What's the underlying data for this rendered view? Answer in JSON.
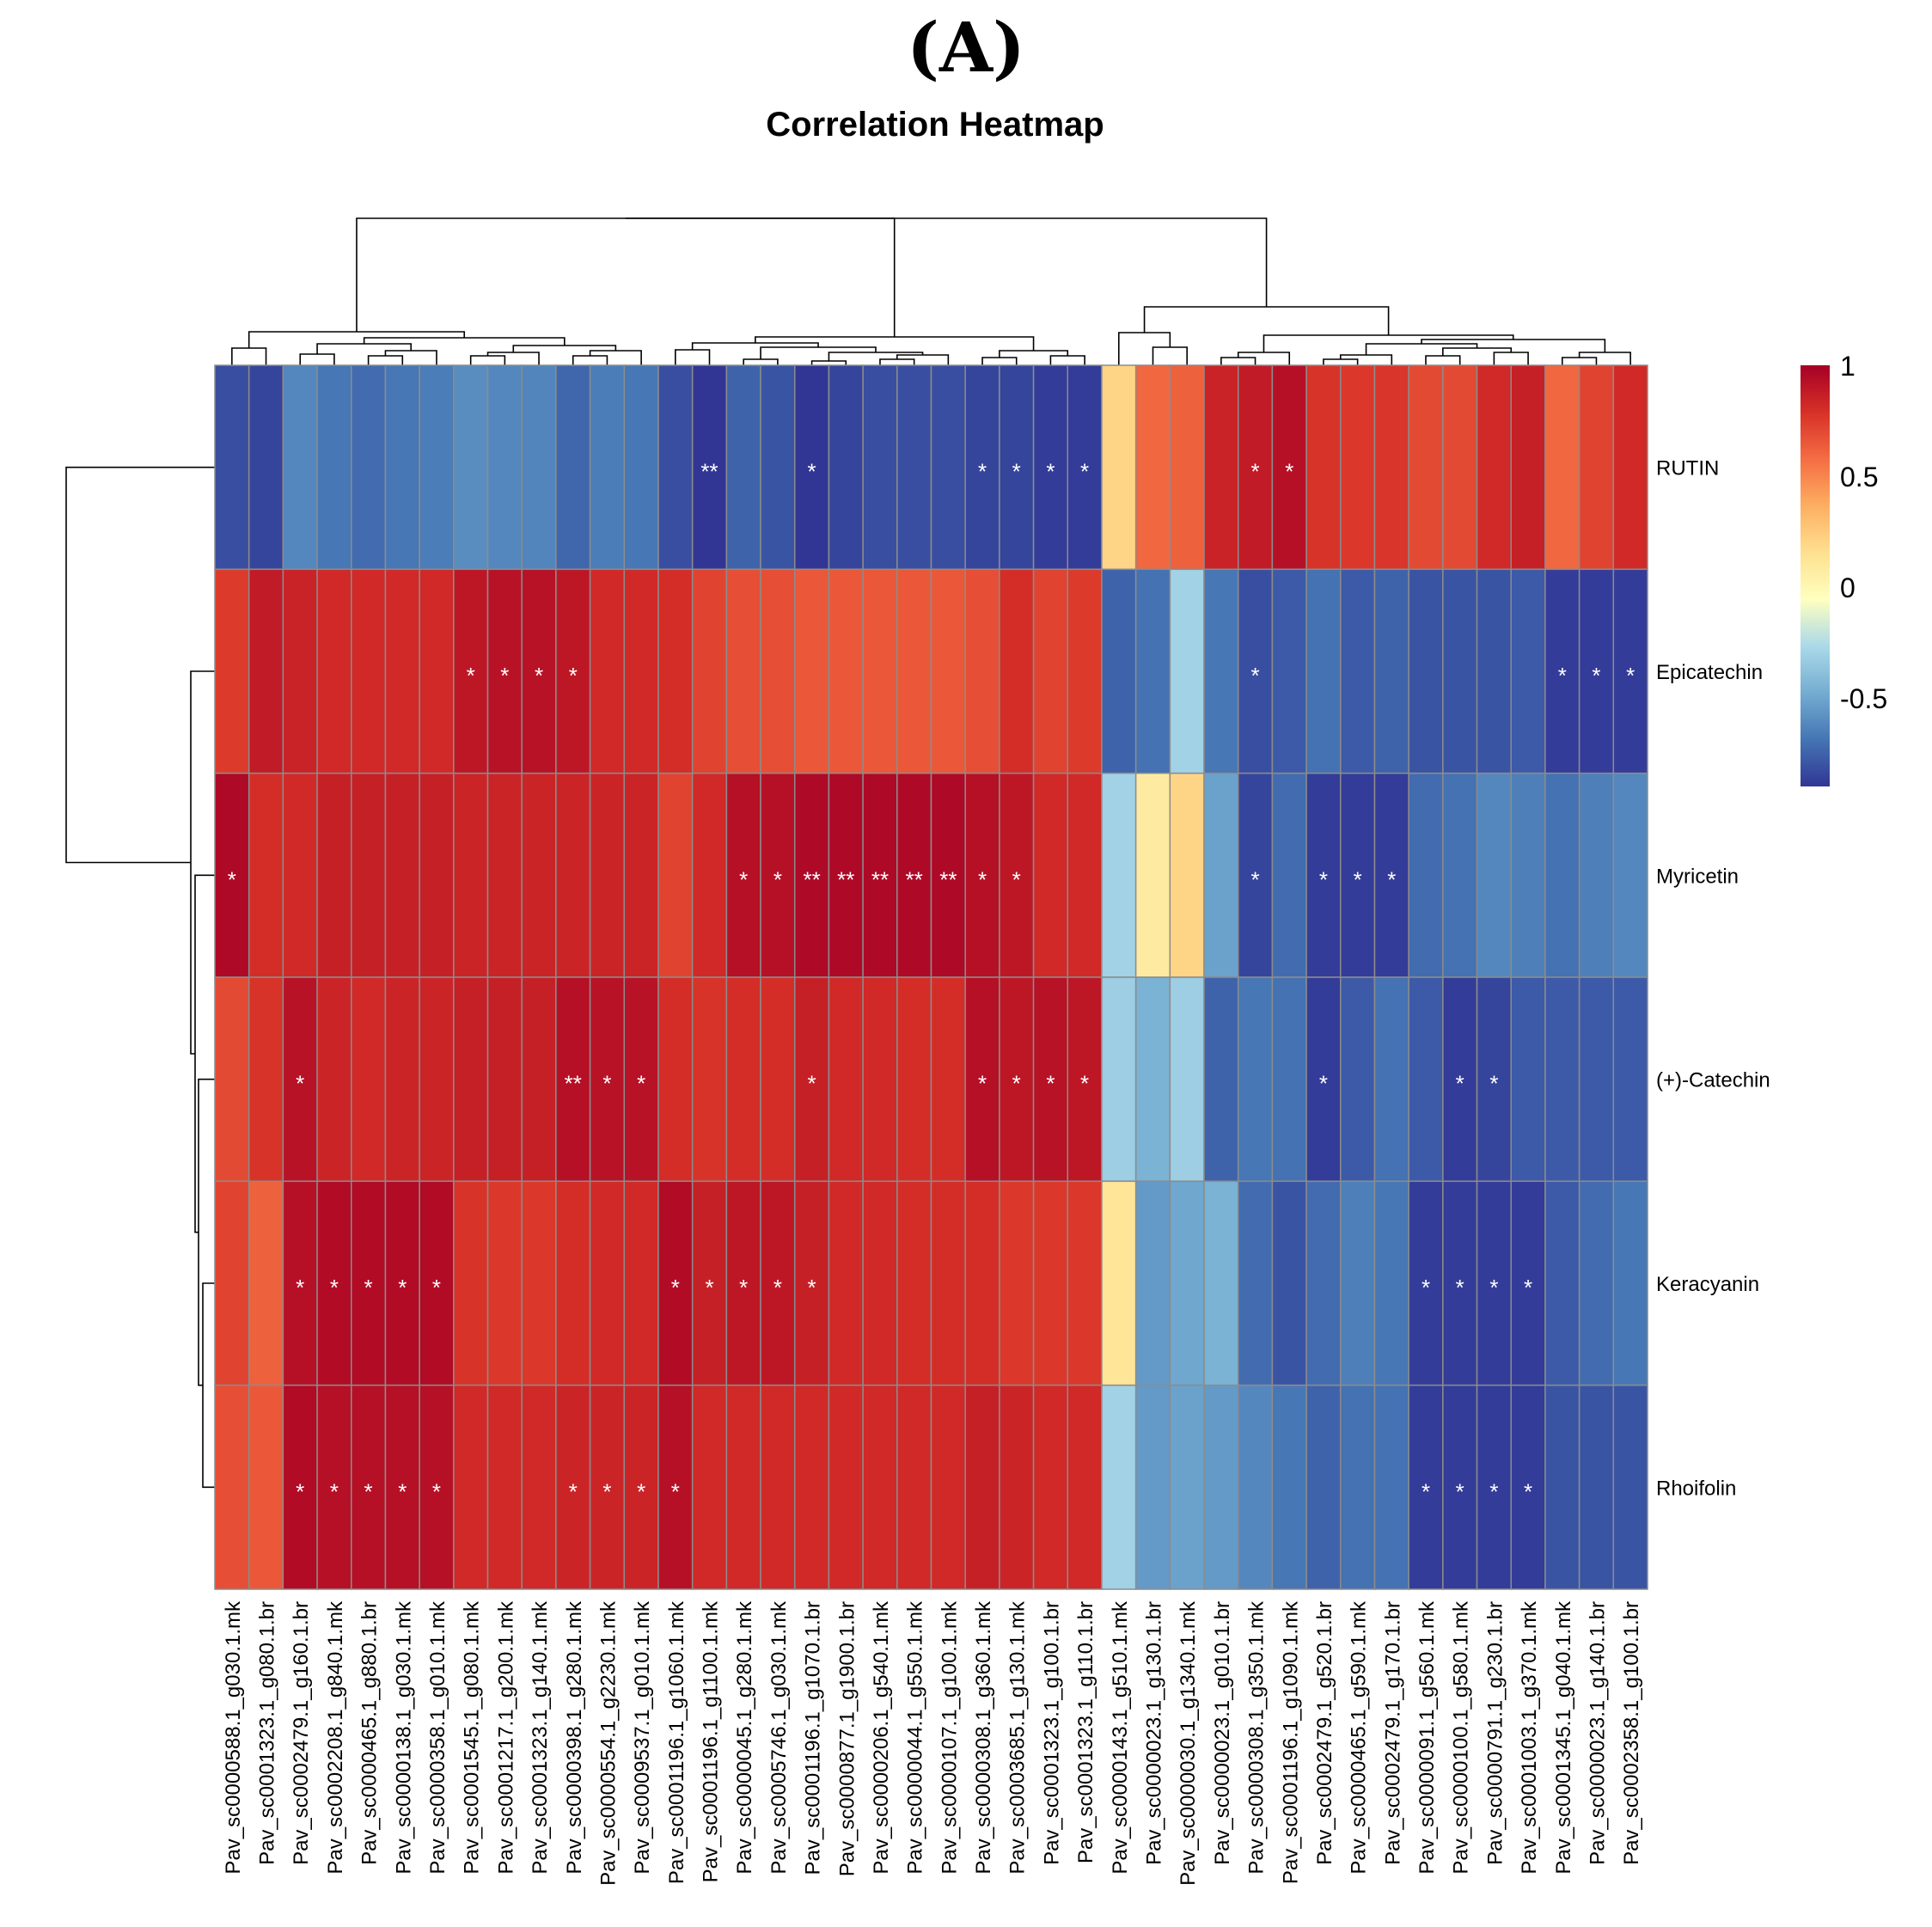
{
  "panel_label": "(A)",
  "chart_data": {
    "type": "heatmap",
    "title": "Correlation Heatmap",
    "rows": [
      "RUTIN",
      "Epicatechin",
      "Myricetin",
      "(+)-Catechin",
      "Keracyanin",
      "Rhoifolin"
    ],
    "columns": [
      "Pav_sc0000588.1_g030.1.mk",
      "Pav_sc0001323.1_g080.1.br",
      "Pav_sc0002479.1_g160.1.br",
      "Pav_sc0002208.1_g840.1.mk",
      "Pav_sc0000465.1_g880.1.br",
      "Pav_sc0000138.1_g030.1.mk",
      "Pav_sc0000358.1_g010.1.mk",
      "Pav_sc0001545.1_g080.1.mk",
      "Pav_sc0001217.1_g200.1.mk",
      "Pav_sc0001323.1_g140.1.mk",
      "Pav_sc0000398.1_g280.1.mk",
      "Pav_sc0000554.1_g2230.1.mk",
      "Pav_sc0009537.1_g010.1.mk",
      "Pav_sc0001196.1_g1060.1.mk",
      "Pav_sc0001196.1_g1100.1.mk",
      "Pav_sc0000045.1_g280.1.mk",
      "Pav_sc0005746.1_g030.1.mk",
      "Pav_sc0001196.1_g1070.1.br",
      "Pav_sc0000877.1_g1900.1.br",
      "Pav_sc0000206.1_g540.1.mk",
      "Pav_sc0000044.1_g550.1.mk",
      "Pav_sc0000107.1_g100.1.mk",
      "Pav_sc0000308.1_g360.1.mk",
      "Pav_sc0003685.1_g130.1.mk",
      "Pav_sc0001323.1_g100.1.br",
      "Pav_sc0001323.1_g110.1.br",
      "Pav_sc0000143.1_g510.1.mk",
      "Pav_sc0000023.1_g130.1.br",
      "Pav_sc0000030.1_g1340.1.mk",
      "Pav_sc0000023.1_g010.1.br",
      "Pav_sc0000308.1_g350.1.mk",
      "Pav_sc0001196.1_g1090.1.mk",
      "Pav_sc0002479.1_g520.1.br",
      "Pav_sc0000465.1_g590.1.mk",
      "Pav_sc0002479.1_g170.1.br",
      "Pav_sc0000091.1_g560.1.mk",
      "Pav_sc0000100.1_g580.1.mk",
      "Pav_sc0000791.1_g230.1.br",
      "Pav_sc0001003.1_g370.1.mk",
      "Pav_sc0001345.1_g040.1.mk",
      "Pav_sc0000023.1_g140.1.br",
      "Pav_sc0002358.1_g100.1.br"
    ],
    "values": [
      [
        -0.82,
        -0.85,
        -0.62,
        -0.68,
        -0.72,
        -0.68,
        -0.66,
        -0.6,
        -0.62,
        -0.63,
        -0.74,
        -0.66,
        -0.68,
        -0.82,
        -0.9,
        -0.75,
        -0.8,
        -0.9,
        -0.85,
        -0.82,
        -0.82,
        -0.82,
        -0.85,
        -0.85,
        -0.88,
        -0.88,
        0.2,
        0.6,
        0.62,
        0.85,
        0.88,
        0.93,
        0.78,
        0.76,
        0.77,
        0.7,
        0.7,
        0.82,
        0.86,
        0.6,
        0.72,
        0.82
      ],
      [
        0.75,
        0.88,
        0.85,
        0.82,
        0.82,
        0.82,
        0.82,
        0.9,
        0.92,
        0.92,
        0.9,
        0.82,
        0.82,
        0.8,
        0.72,
        0.68,
        0.68,
        0.65,
        0.65,
        0.65,
        0.65,
        0.65,
        0.68,
        0.8,
        0.72,
        0.75,
        -0.75,
        -0.7,
        -0.3,
        -0.68,
        -0.82,
        -0.78,
        -0.7,
        -0.78,
        -0.75,
        -0.8,
        -0.8,
        -0.8,
        -0.78,
        -0.88,
        -0.88,
        -0.88
      ],
      [
        0.96,
        0.8,
        0.82,
        0.86,
        0.86,
        0.86,
        0.86,
        0.84,
        0.84,
        0.84,
        0.84,
        0.84,
        0.84,
        0.72,
        0.82,
        0.93,
        0.93,
        0.96,
        0.96,
        0.96,
        0.96,
        0.96,
        0.93,
        0.9,
        0.82,
        0.82,
        -0.3,
        0.08,
        0.2,
        -0.52,
        -0.85,
        -0.72,
        -0.88,
        -0.88,
        -0.88,
        -0.72,
        -0.7,
        -0.62,
        -0.65,
        -0.7,
        -0.65,
        -0.62
      ],
      [
        0.7,
        0.78,
        0.92,
        0.84,
        0.82,
        0.84,
        0.84,
        0.86,
        0.86,
        0.86,
        0.93,
        0.92,
        0.92,
        0.8,
        0.78,
        0.8,
        0.8,
        0.86,
        0.82,
        0.82,
        0.8,
        0.8,
        0.93,
        0.9,
        0.92,
        0.9,
        -0.32,
        -0.45,
        -0.32,
        -0.75,
        -0.68,
        -0.7,
        -0.88,
        -0.78,
        -0.7,
        -0.78,
        -0.88,
        -0.85,
        -0.78,
        -0.78,
        -0.78,
        -0.78
      ],
      [
        0.72,
        0.62,
        0.93,
        0.95,
        0.95,
        0.95,
        0.95,
        0.78,
        0.76,
        0.76,
        0.8,
        0.82,
        0.82,
        0.95,
        0.86,
        0.9,
        0.9,
        0.86,
        0.82,
        0.82,
        0.8,
        0.8,
        0.8,
        0.76,
        0.76,
        0.76,
        0.12,
        -0.55,
        -0.5,
        -0.45,
        -0.72,
        -0.8,
        -0.72,
        -0.65,
        -0.68,
        -0.88,
        -0.88,
        -0.88,
        -0.88,
        -0.78,
        -0.72,
        -0.68
      ],
      [
        0.68,
        0.65,
        0.95,
        0.93,
        0.93,
        0.93,
        0.93,
        0.82,
        0.82,
        0.82,
        0.84,
        0.84,
        0.84,
        0.93,
        0.82,
        0.82,
        0.82,
        0.82,
        0.82,
        0.82,
        0.82,
        0.82,
        0.86,
        0.84,
        0.82,
        0.82,
        -0.3,
        -0.55,
        -0.52,
        -0.55,
        -0.62,
        -0.68,
        -0.75,
        -0.7,
        -0.7,
        -0.88,
        -0.88,
        -0.88,
        -0.88,
        -0.8,
        -0.8,
        -0.8
      ]
    ],
    "significance": [
      [
        "",
        "",
        "",
        "",
        "",
        "",
        "",
        "",
        "",
        "",
        "",
        "",
        "",
        "",
        "**",
        "",
        "",
        "*",
        "",
        "",
        "",
        "",
        "*",
        "*",
        "*",
        "*",
        "",
        "",
        "",
        "",
        "*",
        "*",
        "",
        "",
        "",
        "",
        "",
        "",
        "",
        "",
        "",
        ""
      ],
      [
        "",
        "",
        "",
        "",
        "",
        "",
        "",
        "*",
        "*",
        "*",
        "*",
        "",
        "",
        "",
        "",
        "",
        "",
        "",
        "",
        "",
        "",
        "",
        "",
        "",
        "",
        "",
        "",
        "",
        "",
        "",
        "*",
        "",
        "",
        "",
        "",
        "",
        "",
        "",
        "",
        "*",
        "*",
        "*"
      ],
      [
        "*",
        "",
        "",
        "",
        "",
        "",
        "",
        "",
        "",
        "",
        "",
        "",
        "",
        "",
        "",
        "*",
        "*",
        "**",
        "**",
        "**",
        "**",
        "**",
        "*",
        "*",
        "",
        "",
        "",
        "",
        "",
        "",
        "*",
        "",
        "*",
        "*",
        "*",
        "",
        "",
        "",
        "",
        "",
        "",
        ""
      ],
      [
        "",
        "",
        "*",
        "",
        "",
        "",
        "",
        "",
        "",
        "",
        "**",
        "*",
        "*",
        "",
        "",
        "",
        "",
        "*",
        "",
        "",
        "",
        "",
        "*",
        "*",
        "*",
        "*",
        "",
        "",
        "",
        "",
        "",
        "",
        "*",
        "",
        "",
        "",
        "*",
        "*",
        "",
        "",
        "",
        ""
      ],
      [
        "",
        "",
        "*",
        "*",
        "*",
        "*",
        "*",
        "",
        "",
        "",
        "",
        "",
        "",
        "*",
        "*",
        "*",
        "*",
        "*",
        "",
        "",
        "",
        "",
        "",
        "",
        "",
        "",
        "",
        "",
        "",
        "",
        "",
        "",
        "",
        "",
        "",
        "*",
        "*",
        "*",
        "*",
        "",
        "",
        ""
      ],
      [
        "",
        "",
        "*",
        "*",
        "*",
        "*",
        "*",
        "",
        "",
        "",
        "*",
        "*",
        "*",
        "*",
        "",
        "",
        "",
        "",
        "",
        "",
        "",
        "",
        "",
        "",
        "",
        "",
        "",
        "",
        "",
        "",
        "",
        "",
        "",
        "",
        "",
        "*",
        "*",
        "*",
        "*",
        "",
        "",
        ""
      ]
    ],
    "colorbar": {
      "min": -0.9,
      "max": 1,
      "ticks": [
        1,
        0.5,
        0,
        -0.5
      ],
      "tick_labels": [
        "1",
        "0.5",
        "0",
        "-0.5"
      ]
    },
    "color_stops": [
      "#313695",
      "#4575b4",
      "#74add1",
      "#abd9e9",
      "#ffffbf",
      "#fee090",
      "#fdae61",
      "#f46d43",
      "#d73027",
      "#a50026"
    ],
    "cell_border_color": "#8c8c8c"
  }
}
